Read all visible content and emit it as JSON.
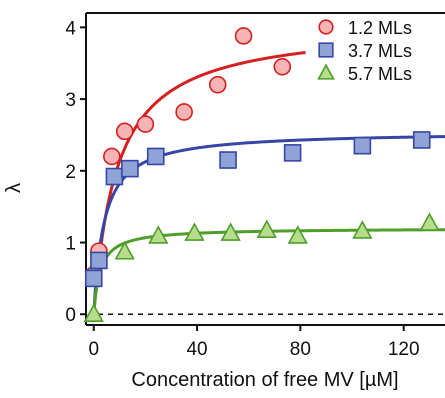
{
  "chart_data": {
    "type": "scatter",
    "title": "",
    "xlabel": "Concentration of free MV [µM]",
    "ylabel": "λ",
    "xlim": [
      -3,
      136
    ],
    "ylim": [
      -0.15,
      4.2
    ],
    "x_ticks": [
      0,
      40,
      80,
      120
    ],
    "y_ticks": [
      0,
      1,
      2,
      3,
      4
    ],
    "x_tick_labels": [
      "0",
      "40",
      "80",
      "120"
    ],
    "y_tick_labels": [
      "0",
      "1",
      "2",
      "3",
      "4"
    ],
    "grid": false,
    "legend_position": "top-right",
    "reference_line": {
      "y": 0,
      "style": "dashed"
    },
    "series": [
      {
        "name": "1.2 MLs",
        "marker": "circle",
        "color": "#d42020",
        "fill": "#f7b4b4",
        "points": [
          {
            "x": 0,
            "y": 0.55
          },
          {
            "x": 2,
            "y": 0.88
          },
          {
            "x": 7,
            "y": 2.2
          },
          {
            "x": 12,
            "y": 2.55
          },
          {
            "x": 20,
            "y": 2.65
          },
          {
            "x": 35,
            "y": 2.82
          },
          {
            "x": 48,
            "y": 3.2
          },
          {
            "x": 58,
            "y": 3.88
          },
          {
            "x": 73,
            "y": 3.45
          }
        ],
        "fit": {
          "model": "langmuir",
          "max": 4.05,
          "k": 9,
          "x_end": 82
        }
      },
      {
        "name": "3.7 MLs",
        "marker": "square",
        "color": "#3546a6",
        "fill": "#8fa3d6",
        "points": [
          {
            "x": 0,
            "y": 0.5
          },
          {
            "x": 2,
            "y": 0.75
          },
          {
            "x": 8,
            "y": 1.92
          },
          {
            "x": 14,
            "y": 2.03
          },
          {
            "x": 24,
            "y": 2.2
          },
          {
            "x": 52,
            "y": 2.15
          },
          {
            "x": 77,
            "y": 2.25
          },
          {
            "x": 104,
            "y": 2.35
          },
          {
            "x": 127,
            "y": 2.43
          }
        ],
        "fit": {
          "model": "langmuir",
          "max": 2.55,
          "k": 4,
          "x_end": 136
        }
      },
      {
        "name": "5.7 MLs",
        "marker": "triangle",
        "color": "#4f9e2a",
        "fill": "#b7dc8c",
        "points": [
          {
            "x": 0,
            "y": 0.0
          },
          {
            "x": 12,
            "y": 0.87
          },
          {
            "x": 25,
            "y": 1.09
          },
          {
            "x": 39,
            "y": 1.13
          },
          {
            "x": 53,
            "y": 1.13
          },
          {
            "x": 67,
            "y": 1.17
          },
          {
            "x": 79,
            "y": 1.09
          },
          {
            "x": 104,
            "y": 1.16
          },
          {
            "x": 130,
            "y": 1.27
          }
        ],
        "fit": {
          "model": "langmuir",
          "max": 1.2,
          "k": 2.5,
          "x_end": 136
        }
      }
    ]
  }
}
